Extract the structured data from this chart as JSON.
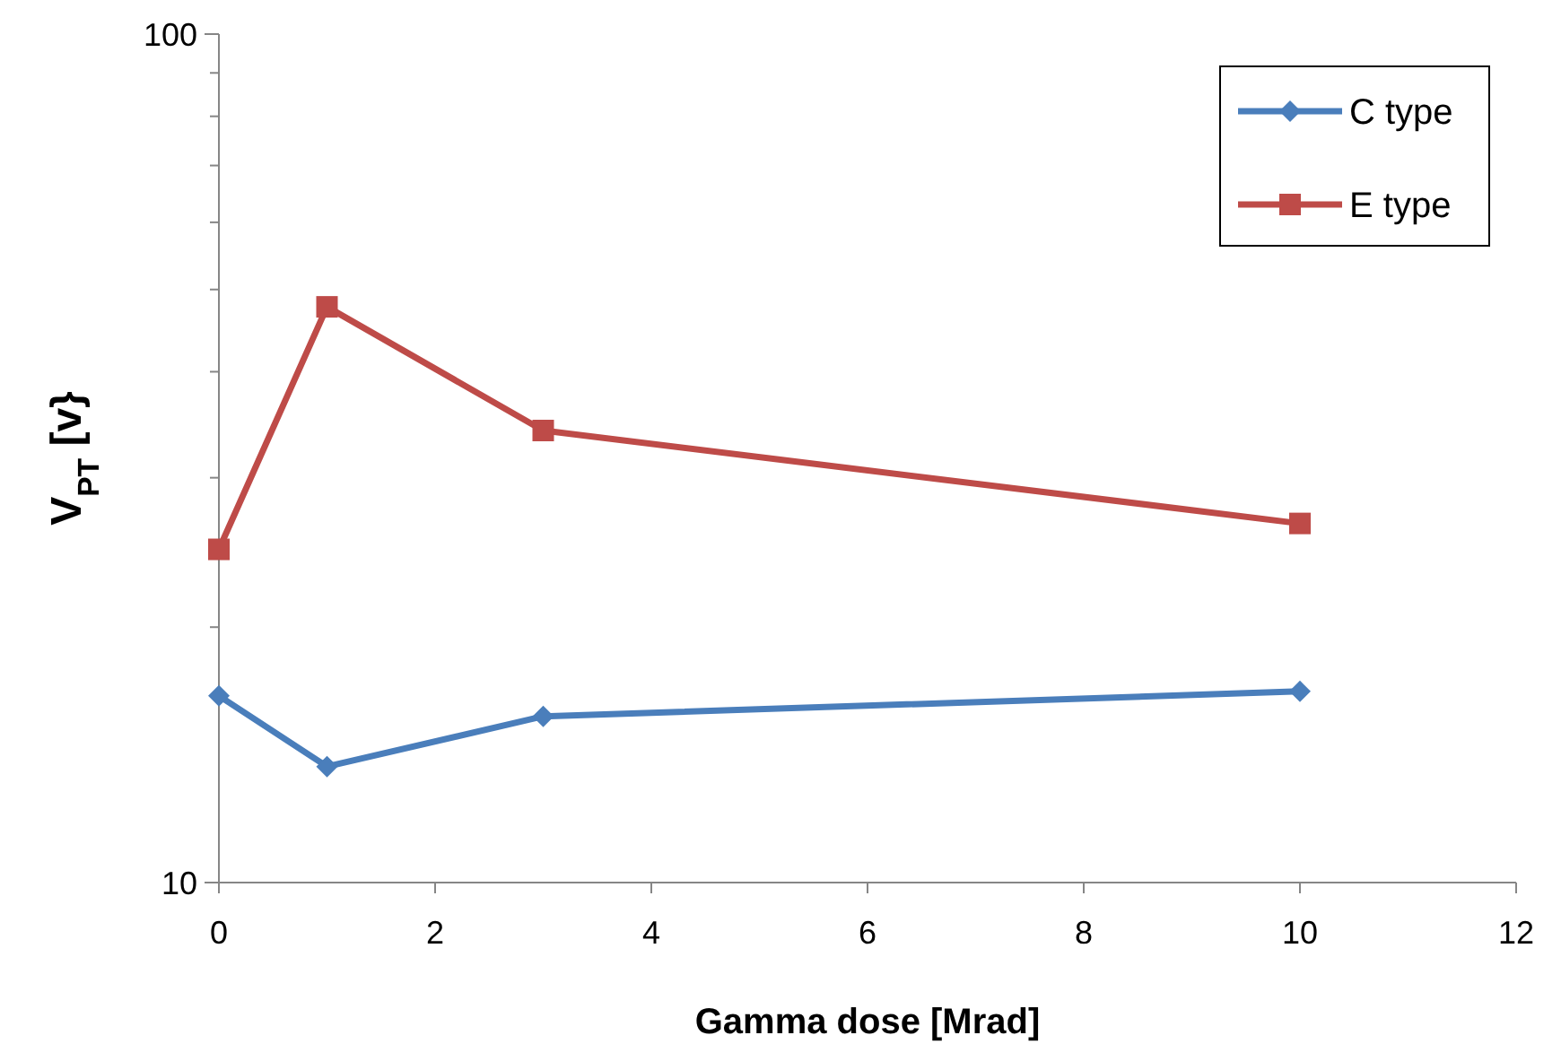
{
  "chart_data": {
    "type": "line",
    "xlabel": "Gamma dose [Mrad]",
    "ylabel": "V$_{PT}$ [v}",
    "x": [
      0,
      1,
      3,
      10
    ],
    "series": [
      {
        "name": "C type",
        "color": "#4a7ebb",
        "marker": "diamond",
        "values": [
          16.6,
          13.7,
          15.7,
          16.8
        ]
      },
      {
        "name": "E type",
        "color": "#be4b48",
        "marker": "square",
        "values": [
          24.7,
          47.7,
          34.1,
          26.5
        ]
      }
    ],
    "xlim": [
      0,
      12
    ],
    "xticks": [
      0,
      2,
      4,
      6,
      8,
      10,
      12
    ],
    "ylim": [
      10,
      100
    ],
    "yticks": [
      10,
      {
        "value": 20,
        "label": null
      },
      {
        "value": 30,
        "label": null
      },
      {
        "value": 40,
        "label": null
      },
      {
        "value": 50,
        "label": null
      },
      {
        "value": 60,
        "label": null
      },
      {
        "value": 70,
        "label": null
      },
      {
        "value": 80,
        "label": null
      },
      {
        "value": 90,
        "label": null
      },
      100
    ],
    "log": true,
    "grid": false,
    "legend": "top right",
    "line_style": "solid"
  }
}
